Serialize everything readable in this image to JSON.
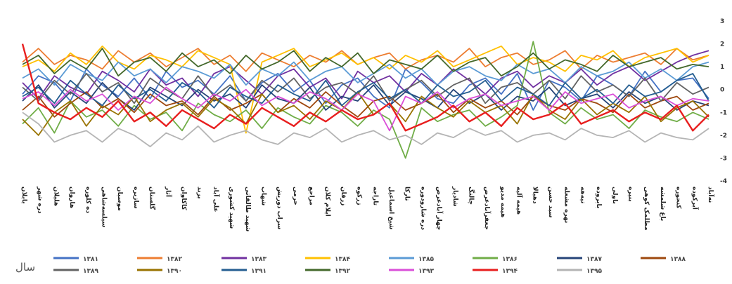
{
  "chart_data": {
    "type": "line",
    "ylim": [
      -4,
      3
    ],
    "yticks": [
      "3",
      "2",
      "1",
      "0",
      "-1",
      "-2",
      "-3",
      "-4"
    ],
    "categories": [
      "بابلان",
      "دره شهر",
      "هلیلان",
      "هاروان",
      "ده کلوره",
      "سیلسه‌شاهی",
      "موسیان",
      "سازبره",
      "گلستان",
      "آثار",
      "کاکاوان",
      "بزند",
      "علی آباد",
      "شهید کشوری",
      "شهید طالقانی",
      "شهاب",
      "سراب دوریش",
      "حرمی",
      "مراجع",
      "ایلام کلان",
      "زرقان",
      "زرکوه",
      "تاراجه",
      "شیخ اسماعیل",
      "نارکا",
      "دره شارودوره",
      "چهار آبادعرض",
      "شادیار",
      "چالنگ",
      "جعفرآبادعرض",
      "هیمه مدیو",
      "هیمه آلیه",
      "دهبالا",
      "سید حسن",
      "نهره مشعله",
      "تیه‌هه",
      "بایروده",
      "باولی",
      "بنیره",
      "مظلمک کوهی",
      "باغ شلمشه",
      "کنجوره",
      "آبرکوده",
      "نه‌آباد"
    ],
    "series_labels": [
      "۱۳۸۱",
      "۱۳۸۲",
      "۱۳۸۳",
      "۱۳۸۴",
      "۱۳۸۵",
      "۱۳۸۶",
      "۱۳۸۷",
      "۱۳۸۸",
      "۱۳۸۹",
      "۱۳۹۰",
      "۱۳۹۱",
      "۱۳۹۲",
      "۱۳۹۳",
      "۱۳۹۴",
      "۱۳۹۵"
    ],
    "series_colors": [
      "#4472C4",
      "#ED7D31",
      "#7030A0",
      "#FFC000",
      "#5B9BD5",
      "#70AD47",
      "#264478",
      "#9E480E",
      "#636363",
      "#997300",
      "#255E91",
      "#43682B",
      "#DA4FD8",
      "#E81E1E",
      "#B4B4B4"
    ],
    "legend_title": "سال",
    "legend_position": "bottom",
    "grid": false,
    "series": [
      {
        "values": [
          -0.2,
          0.6,
          0.3,
          -0.5,
          0.9,
          0.2,
          -0.3,
          0.5,
          -0.4,
          0.8,
          0.1,
          0.4,
          -0.2,
          0.6,
          -0.5,
          0.3,
          0.7,
          -0.1,
          0.4,
          -0.6,
          0.2,
          0.5,
          -0.3,
          -0.8,
          0.9,
          0.3,
          -0.4,
          -0.6,
          0.2,
          0.5,
          -0.2,
          0.7,
          -0.9,
          0.4,
          0.1,
          -0.5,
          0.6,
          0.2,
          -0.3,
          0.8,
          -0.1,
          0.4,
          0.5,
          -0.4
        ]
      },
      {
        "values": [
          1.2,
          1.8,
          1.1,
          1.5,
          1.3,
          0.9,
          1.7,
          1.2,
          1.6,
          1.0,
          1.4,
          1.8,
          1.1,
          1.5,
          0.8,
          1.6,
          1.3,
          1.0,
          1.5,
          1.2,
          1.7,
          1.1,
          1.4,
          1.6,
          0.9,
          1.3,
          1.5,
          1.2,
          1.8,
          1.0,
          1.4,
          1.6,
          1.1,
          1.3,
          1.7,
          0.9,
          1.5,
          1.2,
          1.4,
          1.6,
          1.1,
          1.8,
          1.3,
          1.5
        ]
      },
      {
        "values": [
          0.3,
          -0.4,
          0.6,
          0.1,
          -0.2,
          0.8,
          0.4,
          -0.1,
          0.9,
          0.2,
          0.5,
          -0.3,
          0.7,
          1.0,
          0.4,
          -0.2,
          0.6,
          0.9,
          0.1,
          0.5,
          -0.4,
          0.8,
          0.3,
          0.6,
          -0.1,
          0.7,
          0.2,
          0.9,
          0.4,
          -0.2,
          0.5,
          0.8,
          0.1,
          0.6,
          0.3,
          0.9,
          0.2,
          0.7,
          1.0,
          0.4,
          0.8,
          1.2,
          1.5,
          1.7
        ]
      },
      {
        "values": [
          1.0,
          1.3,
          0.8,
          1.6,
          1.1,
          1.9,
          1.2,
          0.9,
          1.5,
          1.3,
          1.0,
          1.7,
          1.4,
          1.1,
          -1.9,
          1.2,
          1.5,
          1.8,
          1.0,
          1.3,
          1.6,
          1.1,
          1.4,
          0.9,
          1.5,
          1.2,
          1.7,
          1.0,
          1.3,
          1.6,
          1.9,
          1.1,
          1.4,
          1.2,
          0.8,
          1.5,
          1.3,
          1.7,
          1.0,
          1.4,
          1.6,
          1.8,
          1.2,
          1.5
        ]
      },
      {
        "values": [
          0.5,
          0.9,
          0.2,
          1.1,
          0.7,
          0.4,
          1.2,
          0.6,
          0.9,
          0.3,
          1.0,
          0.8,
          0.5,
          1.1,
          0.2,
          0.9,
          0.6,
          1.2,
          0.4,
          0.8,
          1.0,
          0.3,
          0.7,
          1.1,
          0.5,
          0.9,
          0.2,
          0.8,
          1.0,
          0.6,
          0.4,
          1.1,
          0.7,
          0.9,
          0.3,
          1.0,
          0.6,
          0.8,
          1.2,
          0.5,
          0.9,
          0.4,
          1.0,
          1.2
        ]
      },
      {
        "values": [
          -1.5,
          -0.8,
          -1.9,
          -0.5,
          -1.2,
          -0.9,
          -1.6,
          -0.7,
          -1.3,
          -1.0,
          -1.8,
          -0.6,
          -1.1,
          -1.4,
          -0.9,
          -1.7,
          -0.8,
          -1.2,
          -1.5,
          -0.7,
          -1.0,
          -1.6,
          -0.9,
          -1.3,
          -3.0,
          -0.8,
          -1.4,
          -1.1,
          -0.9,
          -1.6,
          -1.2,
          -0.7,
          2.1,
          -1.0,
          -1.5,
          -0.8,
          -1.3,
          -1.1,
          -1.7,
          -0.9,
          -1.2,
          -1.4,
          -1.0,
          -1.3
        ]
      },
      {
        "values": [
          -0.5,
          0.2,
          -0.8,
          -0.1,
          -0.6,
          0.3,
          -0.4,
          -0.9,
          0.1,
          -0.3,
          -0.7,
          0.0,
          -0.5,
          -0.2,
          -0.8,
          0.2,
          -0.4,
          -0.6,
          0.1,
          -0.9,
          -0.3,
          -0.5,
          0.2,
          -0.7,
          -0.1,
          -0.4,
          -0.8,
          0.0,
          -0.6,
          -0.2,
          -0.9,
          -0.3,
          -0.5,
          0.1,
          -0.7,
          -0.4,
          -0.2,
          -0.8,
          -0.1,
          -0.6,
          -0.3,
          -0.9,
          -0.5,
          -0.7
        ]
      },
      {
        "values": [
          -0.9,
          -0.3,
          -1.2,
          -0.6,
          -0.1,
          -0.8,
          -0.4,
          -1.0,
          -0.2,
          -0.7,
          -0.5,
          -1.1,
          -0.3,
          -0.9,
          -0.6,
          -0.2,
          -1.0,
          -0.4,
          -0.8,
          -0.1,
          -0.7,
          -1.2,
          -0.5,
          -0.3,
          -0.9,
          -0.6,
          -0.2,
          -1.0,
          -0.4,
          -0.8,
          -0.5,
          -1.1,
          -0.3,
          -0.7,
          -0.9,
          -0.4,
          -0.6,
          -1.0,
          -0.2,
          -0.8,
          -0.5,
          -0.3,
          -0.9,
          -0.6
        ]
      },
      {
        "values": [
          0.1,
          -0.5,
          0.4,
          -0.2,
          0.7,
          -0.1,
          0.3,
          -0.6,
          0.5,
          0.0,
          -0.4,
          0.6,
          -0.3,
          0.2,
          -0.5,
          0.4,
          -0.1,
          0.5,
          -0.4,
          0.1,
          0.3,
          -0.2,
          0.6,
          -0.5,
          0.0,
          0.4,
          -0.3,
          0.2,
          0.5,
          -0.6,
          0.1,
          0.3,
          -0.2,
          0.4,
          -0.4,
          0.6,
          -0.1,
          0.2,
          -0.3,
          0.5,
          -0.5,
          0.3,
          -0.2,
          0.1
        ]
      },
      {
        "values": [
          -1.3,
          -2.0,
          -1.0,
          -0.5,
          -1.6,
          -0.7,
          -1.1,
          -0.3,
          -1.4,
          -0.9,
          -0.6,
          -1.2,
          -0.4,
          -0.8,
          -1.5,
          -0.2,
          -1.0,
          -0.7,
          -1.3,
          -0.5,
          -0.9,
          -0.1,
          -1.1,
          -0.6,
          -1.4,
          -0.3,
          -0.8,
          -1.2,
          -0.5,
          -1.0,
          -0.7,
          -1.5,
          -0.2,
          -0.9,
          -1.3,
          -0.4,
          -1.1,
          -0.6,
          -1.0,
          -0.3,
          -1.4,
          -0.8,
          -0.5,
          -1.2
        ]
      },
      {
        "values": [
          -0.3,
          0.1,
          -0.6,
          0.4,
          -0.2,
          -0.7,
          0.2,
          -0.4,
          0.0,
          -0.5,
          0.3,
          -0.1,
          -0.8,
          0.1,
          -0.3,
          -0.6,
          0.2,
          -0.2,
          -0.5,
          0.4,
          -0.7,
          -0.1,
          0.3,
          -0.4,
          0.0,
          -0.6,
          0.2,
          -0.3,
          -0.1,
          0.4,
          -0.5,
          0.1,
          -0.2,
          -0.7,
          0.3,
          -0.4,
          0.0,
          -0.6,
          0.2,
          -0.3,
          -0.1,
          0.4,
          0.7,
          -0.5
        ]
      },
      {
        "values": [
          1.1,
          1.5,
          0.7,
          1.3,
          0.9,
          1.8,
          0.6,
          1.2,
          1.4,
          0.8,
          1.6,
          1.0,
          1.3,
          0.7,
          1.5,
          0.9,
          1.2,
          1.7,
          0.8,
          1.4,
          1.0,
          1.6,
          0.7,
          1.3,
          1.1,
          0.9,
          1.5,
          0.8,
          1.2,
          1.4,
          0.6,
          1.0,
          1.6,
          0.9,
          1.3,
          1.1,
          0.8,
          1.5,
          1.0,
          1.2,
          1.4,
          0.9,
          1.1,
          1.0
        ]
      },
      {
        "values": [
          -0.4,
          -0.1,
          -0.7,
          0.0,
          -0.5,
          -0.2,
          -0.9,
          -0.3,
          -0.6,
          0.1,
          -0.4,
          -0.8,
          -0.2,
          -0.5,
          0.0,
          -0.7,
          -0.3,
          -0.6,
          -0.1,
          -0.4,
          -0.9,
          -0.2,
          -0.5,
          -1.8,
          -0.3,
          -0.6,
          -0.1,
          -0.8,
          -0.4,
          -0.2,
          -0.7,
          -0.5,
          -0.3,
          -0.9,
          -0.1,
          -0.6,
          -0.4,
          -0.2,
          -0.8,
          -0.5,
          -0.3,
          -0.7,
          -0.4,
          -0.5
        ]
      },
      {
        "values": [
          2.0,
          -0.6,
          -1.0,
          -1.3,
          -0.8,
          -1.2,
          -0.5,
          -1.4,
          -1.0,
          -1.6,
          -0.9,
          -1.3,
          -1.7,
          -1.1,
          -1.5,
          -0.8,
          -1.2,
          -1.6,
          -1.0,
          -1.4,
          -0.9,
          -1.3,
          -1.1,
          -0.6,
          -1.8,
          -1.5,
          -1.2,
          -0.7,
          -1.4,
          -1.0,
          -1.6,
          -0.8,
          -1.3,
          -1.1,
          -0.6,
          -1.5,
          -1.2,
          -0.9,
          -1.4,
          -1.0,
          -1.3,
          -0.7,
          -1.8,
          -1.1
        ]
      },
      {
        "values": [
          -1.0,
          -1.5,
          -2.3,
          -2.0,
          -1.8,
          -2.3,
          -1.7,
          -2.0,
          -2.5,
          -1.9,
          -2.2,
          -1.6,
          -2.3,
          -2.0,
          -1.8,
          -2.2,
          -2.4,
          -1.9,
          -2.1,
          -1.7,
          -2.3,
          -2.0,
          -1.8,
          -2.2,
          -2.0,
          -2.4,
          -1.9,
          -2.1,
          -1.7,
          -2.0,
          -1.8,
          -2.3,
          -2.0,
          -1.9,
          -2.2,
          -1.7,
          -2.0,
          -2.1,
          -1.8,
          -2.3,
          -1.9,
          -2.1,
          -2.2,
          -1.7
        ]
      }
    ]
  }
}
